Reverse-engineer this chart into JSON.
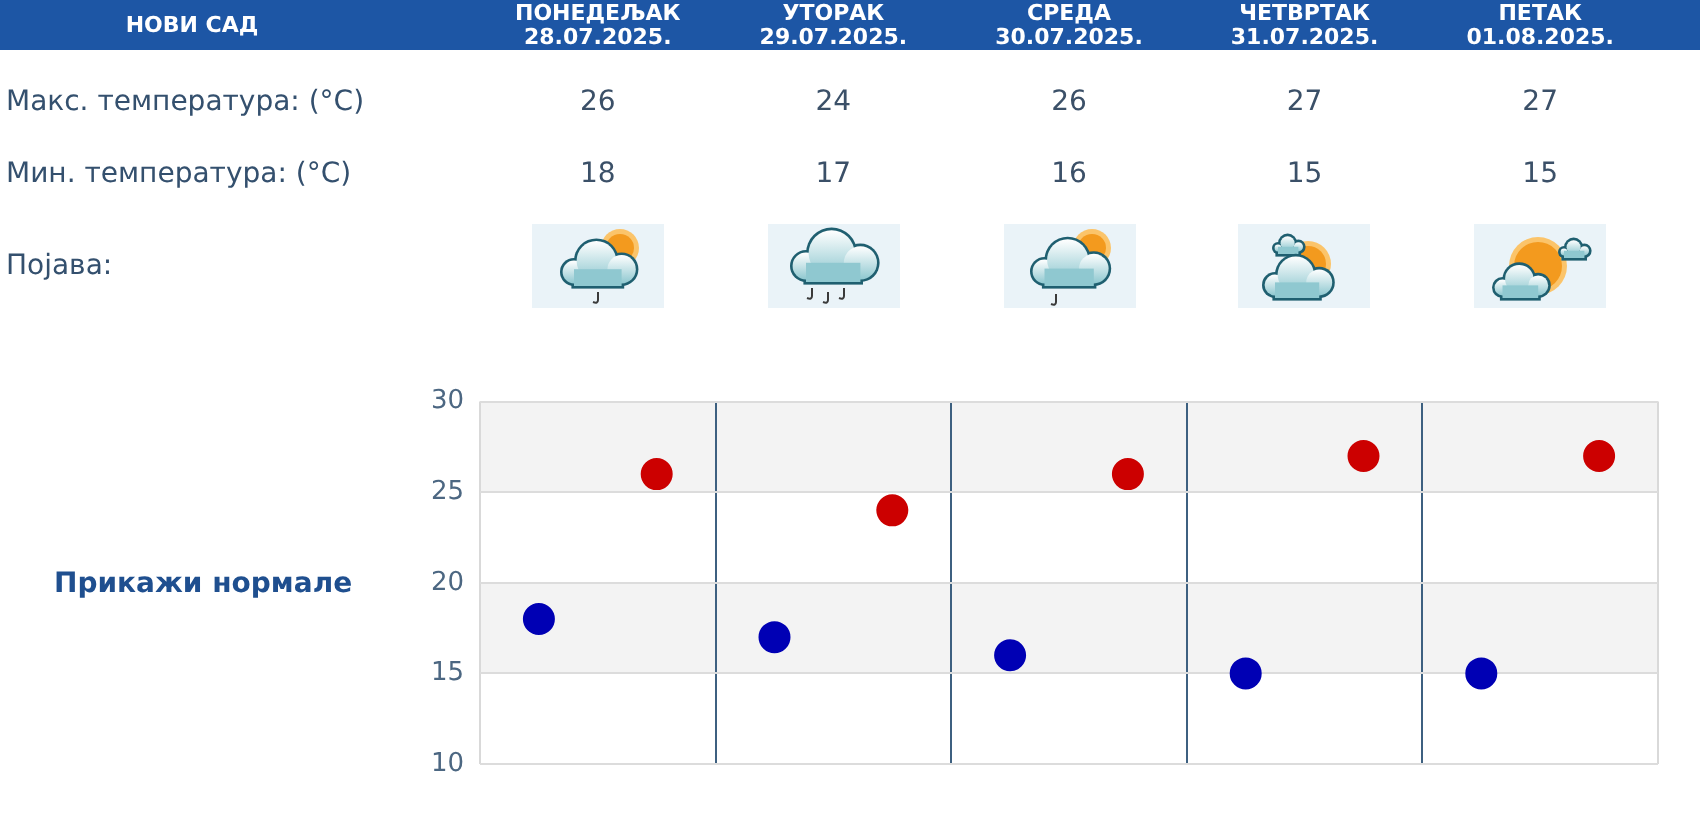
{
  "chart_data": [
    {
      "type": "other",
      "title": "НОВИ САД",
      "categories": [
        "ПОНЕДЕЉАК 28.07.2025.",
        "УТОРАК 29.07.2025.",
        "СРЕДА 30.07.2025.",
        "ЧЕТВРТАК 31.07.2025.",
        "ПЕТАК 01.08.2025."
      ],
      "series": [
        {
          "name": "Макс. температура: (°C)",
          "values": [
            26,
            24,
            26,
            27,
            27
          ]
        },
        {
          "name": "Мин. температура: (°C)",
          "values": [
            18,
            17,
            16,
            15,
            15
          ]
        }
      ],
      "data_labels": true,
      "annotations": [
        "Појава:"
      ]
    },
    {
      "type": "scatter",
      "categories": [
        null,
        null,
        null,
        null,
        null
      ],
      "series": [
        {
          "color": "#cc0000",
          "values": [
            26,
            24,
            26,
            27,
            27
          ]
        },
        {
          "color": "#0000b4",
          "values": [
            18,
            17,
            16,
            15,
            15
          ]
        }
      ],
      "ylim": [
        10,
        30
      ],
      "yticks": [
        10,
        15,
        20,
        25,
        30
      ],
      "grid": true,
      "marker": "circle",
      "annotations": [
        "Прикажи нормале"
      ]
    }
  ]
}
